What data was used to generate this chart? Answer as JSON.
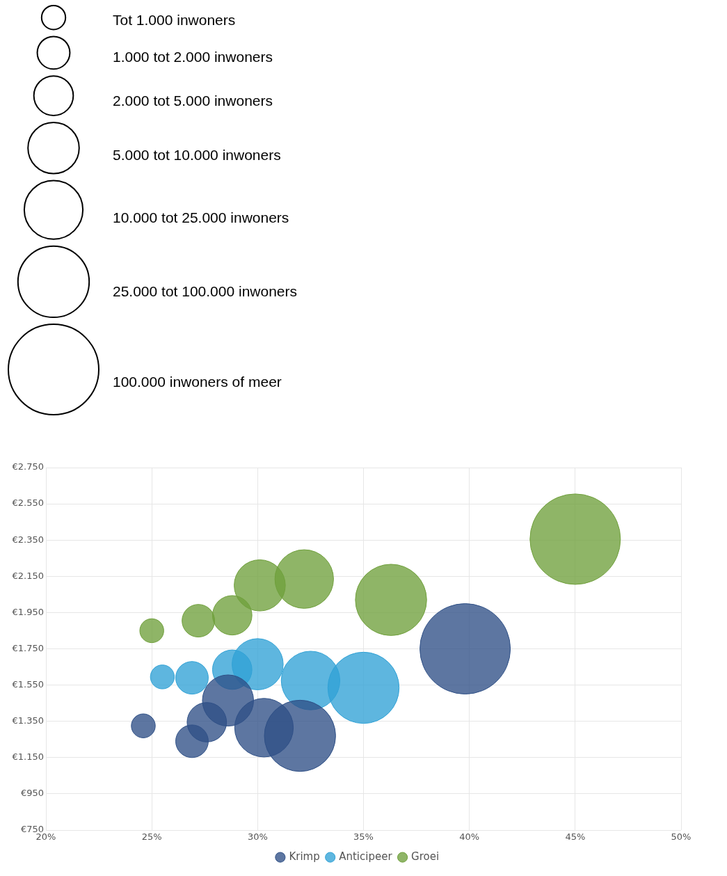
{
  "chart_data": {
    "type": "bubble",
    "size_legend": [
      {
        "value": 0.07,
        "label": "Tot 1.000 inwoners"
      },
      {
        "value": 0.13,
        "label": "1.000 tot 2.000 inwoners"
      },
      {
        "value": 0.19,
        "label": "2.000 tot 5.000 inwoners"
      },
      {
        "value": 0.32,
        "label": "5.000 tot 10.000 inwoners"
      },
      {
        "value": 0.42,
        "label": "10.000 tot 25.000 inwoners"
      },
      {
        "value": 0.62,
        "label": "25.000 tot 100.000 inwoners"
      },
      {
        "value": 1,
        "label": "100.000 inwoners of meer"
      }
    ],
    "series": [
      {
        "name": "Krimp",
        "color": "#2f5086",
        "x": [
          24.6,
          26.9,
          27.6,
          28.6,
          30.3,
          32.0,
          39.8
        ],
        "values": [
          1325,
          1240,
          1345,
          1465,
          1315,
          1270,
          1750
        ],
        "sizes": [
          0.07,
          0.13,
          0.19,
          0.32,
          0.42,
          0.62,
          1
        ]
      },
      {
        "name": "Anticipeer",
        "color": "#31a2d6",
        "x": [
          25.5,
          26.9,
          28.8,
          30.0,
          32.5,
          35.0
        ],
        "values": [
          1595,
          1590,
          1635,
          1665,
          1575,
          1535
        ],
        "sizes": [
          0.07,
          0.13,
          0.19,
          0.32,
          0.42,
          0.62
        ]
      },
      {
        "name": "Groei",
        "color": "#70a03c",
        "x": [
          25.0,
          27.2,
          28.8,
          30.1,
          32.2,
          36.3,
          45.0
        ],
        "values": [
          1850,
          1905,
          1935,
          2100,
          2135,
          2020,
          2355
        ],
        "sizes": [
          0.07,
          0.13,
          0.19,
          0.32,
          0.42,
          0.62,
          1
        ]
      }
    ],
    "xlim": [
      20,
      50
    ],
    "xticks": [
      {
        "value": 20,
        "label": "20%"
      },
      {
        "value": 25,
        "label": "25%"
      },
      {
        "value": 30,
        "label": "30%"
      },
      {
        "value": 35,
        "label": "35%"
      },
      {
        "value": 40,
        "label": "40%"
      },
      {
        "value": 45,
        "label": "45%"
      },
      {
        "value": 50,
        "label": "50%"
      }
    ],
    "ylim": [
      750,
      2750
    ],
    "yticks": [
      {
        "value": 750,
        "label": "€750"
      },
      {
        "value": 950,
        "label": "€950"
      },
      {
        "value": 1150,
        "label": "€1.150"
      },
      {
        "value": 1350,
        "label": "€1.350"
      },
      {
        "value": 1550,
        "label": "€1.550"
      },
      {
        "value": 1750,
        "label": "€1.750"
      },
      {
        "value": 1950,
        "label": "€1.950"
      },
      {
        "value": 2150,
        "label": "€2.150"
      },
      {
        "value": 2350,
        "label": "€2.350"
      },
      {
        "value": 2550,
        "label": "€2.550"
      },
      {
        "value": 2750,
        "label": "€2.750"
      }
    ],
    "grid": true,
    "legend": "bottom",
    "marker": "circle"
  }
}
